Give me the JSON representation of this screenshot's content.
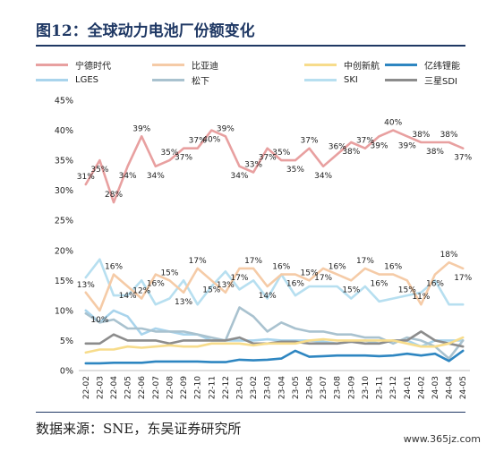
{
  "figure": {
    "title": "图12：全球动力电池厂份额变化",
    "source": "数据来源：SNE，东吴证券研究所",
    "watermark": "www.365jz.com"
  },
  "chart_data": {
    "type": "line",
    "ylim": [
      0,
      45
    ],
    "yticks": [
      "0%",
      "5%",
      "10%",
      "15%",
      "20%",
      "25%",
      "30%",
      "35%",
      "40%",
      "45%"
    ],
    "categories": [
      "22-02",
      "22-03",
      "22-04",
      "22-05",
      "22-06",
      "22-07",
      "22-08",
      "22-09",
      "22-10",
      "22-11",
      "22-12",
      "23-01",
      "23-02",
      "23-03",
      "23-04",
      "23-05",
      "23-06",
      "23-07",
      "23-08",
      "23-09",
      "23-10",
      "23-11",
      "23-12",
      "24-01",
      "24-02",
      "24-03",
      "24-04",
      "24-05"
    ],
    "legend_position": "top",
    "grid": false,
    "series": [
      {
        "name": "宁德时代",
        "color": "#e8a0a0",
        "values": [
          31,
          35,
          28,
          34,
          39,
          34,
          35,
          37,
          37,
          40,
          39,
          34,
          33,
          37,
          35,
          35,
          37,
          34,
          36,
          38,
          37,
          39,
          40,
          39,
          38,
          38,
          38,
          37
        ],
        "labels": [
          "31%",
          "35%",
          "28%",
          "34%",
          "39%",
          "34%",
          "35%",
          "37%",
          "37%",
          "40%",
          "39%",
          "34%",
          "33%",
          "37%",
          "35%",
          "35%",
          "37%",
          "34%",
          "36%",
          "38%",
          "37%",
          "39%",
          "40%",
          "39%",
          "38%",
          "38%",
          "38%",
          "37%"
        ]
      },
      {
        "name": "比亚迪",
        "color": "#f5cba7",
        "values": [
          13,
          10,
          16,
          14,
          12,
          16,
          15,
          13,
          17,
          15,
          13,
          17,
          17,
          14,
          16,
          16,
          15,
          17,
          16,
          15,
          17,
          16,
          16,
          15,
          11,
          16,
          18,
          17
        ],
        "labels": [
          "13%",
          "10%",
          "16%",
          "14%",
          "12%",
          "16%",
          "15%",
          "13%",
          "17%",
          "15%",
          "13%",
          "17%",
          "17%",
          "14%",
          "16%",
          "16%",
          "15%",
          "17%",
          "16%",
          "15%",
          "17%",
          "16%",
          "16%",
          "15%",
          "11%",
          "16%",
          "18%",
          "17%"
        ]
      },
      {
        "name": "中创新航",
        "color": "#f7dc8b",
        "values": [
          3,
          3.5,
          3.5,
          4,
          3.8,
          4,
          4.2,
          4,
          4,
          4.5,
          4.5,
          4.5,
          4.2,
          4.5,
          4.5,
          4.5,
          5,
          5.2,
          5,
          5,
          5,
          5,
          5,
          4.5,
          4,
          4,
          4.5,
          5.5
        ]
      },
      {
        "name": "亿纬锂能",
        "color": "#2e86c1",
        "values": [
          1.2,
          1.2,
          1.3,
          1.3,
          1.3,
          1.5,
          1.5,
          1.5,
          1.5,
          1.4,
          1.4,
          1.8,
          1.7,
          1.8,
          2,
          3.3,
          2.3,
          2.4,
          2.5,
          2.5,
          2.5,
          2.4,
          2.5,
          2.8,
          2.5,
          2.8,
          1.6,
          3.3
        ]
      },
      {
        "name": "LGES",
        "color": "#a9d4ec",
        "values": [
          10,
          8,
          10,
          9,
          6,
          7,
          6.5,
          6,
          6,
          5,
          5,
          5,
          5,
          5.2,
          5,
          5,
          5,
          4.8,
          4.5,
          4.8,
          5,
          4.5,
          5,
          5,
          4,
          5,
          5,
          5
        ]
      },
      {
        "name": "松下",
        "color": "#a9c2cf",
        "values": [
          9.5,
          8,
          8.5,
          7,
          7,
          6.5,
          6.5,
          6.5,
          6,
          5.5,
          5,
          10.5,
          9,
          6.5,
          8,
          7,
          6.5,
          6.5,
          6,
          6,
          5.5,
          5.5,
          4.5,
          5.5,
          5,
          4,
          2,
          5
        ]
      },
      {
        "name": "SKI",
        "color": "#b7dff0",
        "values": [
          15.5,
          18.5,
          12.5,
          12.5,
          15,
          11,
          12,
          15,
          11,
          14,
          16.5,
          13.5,
          15,
          12,
          16,
          12.5,
          14,
          14,
          14,
          12,
          14,
          11.5,
          12,
          12.5,
          13,
          15,
          11,
          11
        ]
      },
      {
        "name": "三星SDI",
        "color": "#8c8c8c",
        "values": [
          4.5,
          4.5,
          6,
          5,
          5,
          5,
          4.5,
          5,
          5,
          5,
          5,
          5.5,
          4.5,
          4.5,
          4.8,
          4.8,
          4.5,
          4.5,
          4.5,
          4.8,
          4.5,
          4.5,
          5,
          5,
          6.5,
          5,
          4.5,
          4
        ]
      }
    ]
  }
}
